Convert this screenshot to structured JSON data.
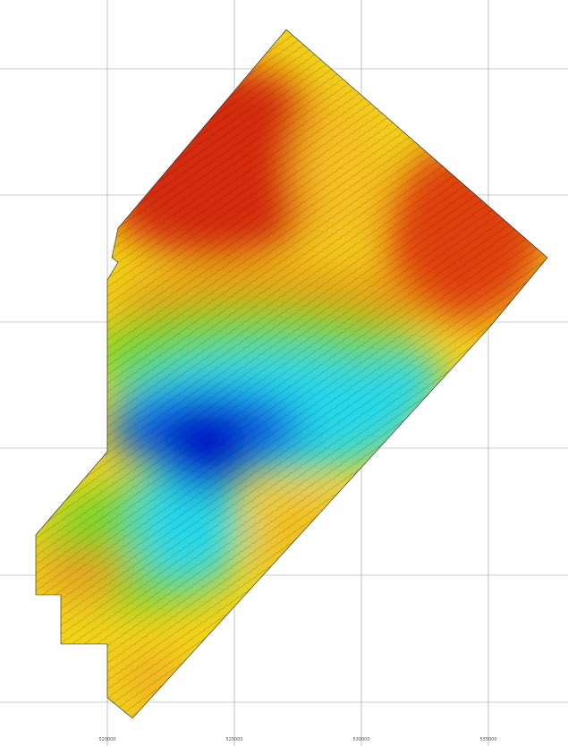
{
  "map": {
    "bottom_labels": [
      "520000",
      "525000",
      "530000",
      "535000"
    ]
  }
}
